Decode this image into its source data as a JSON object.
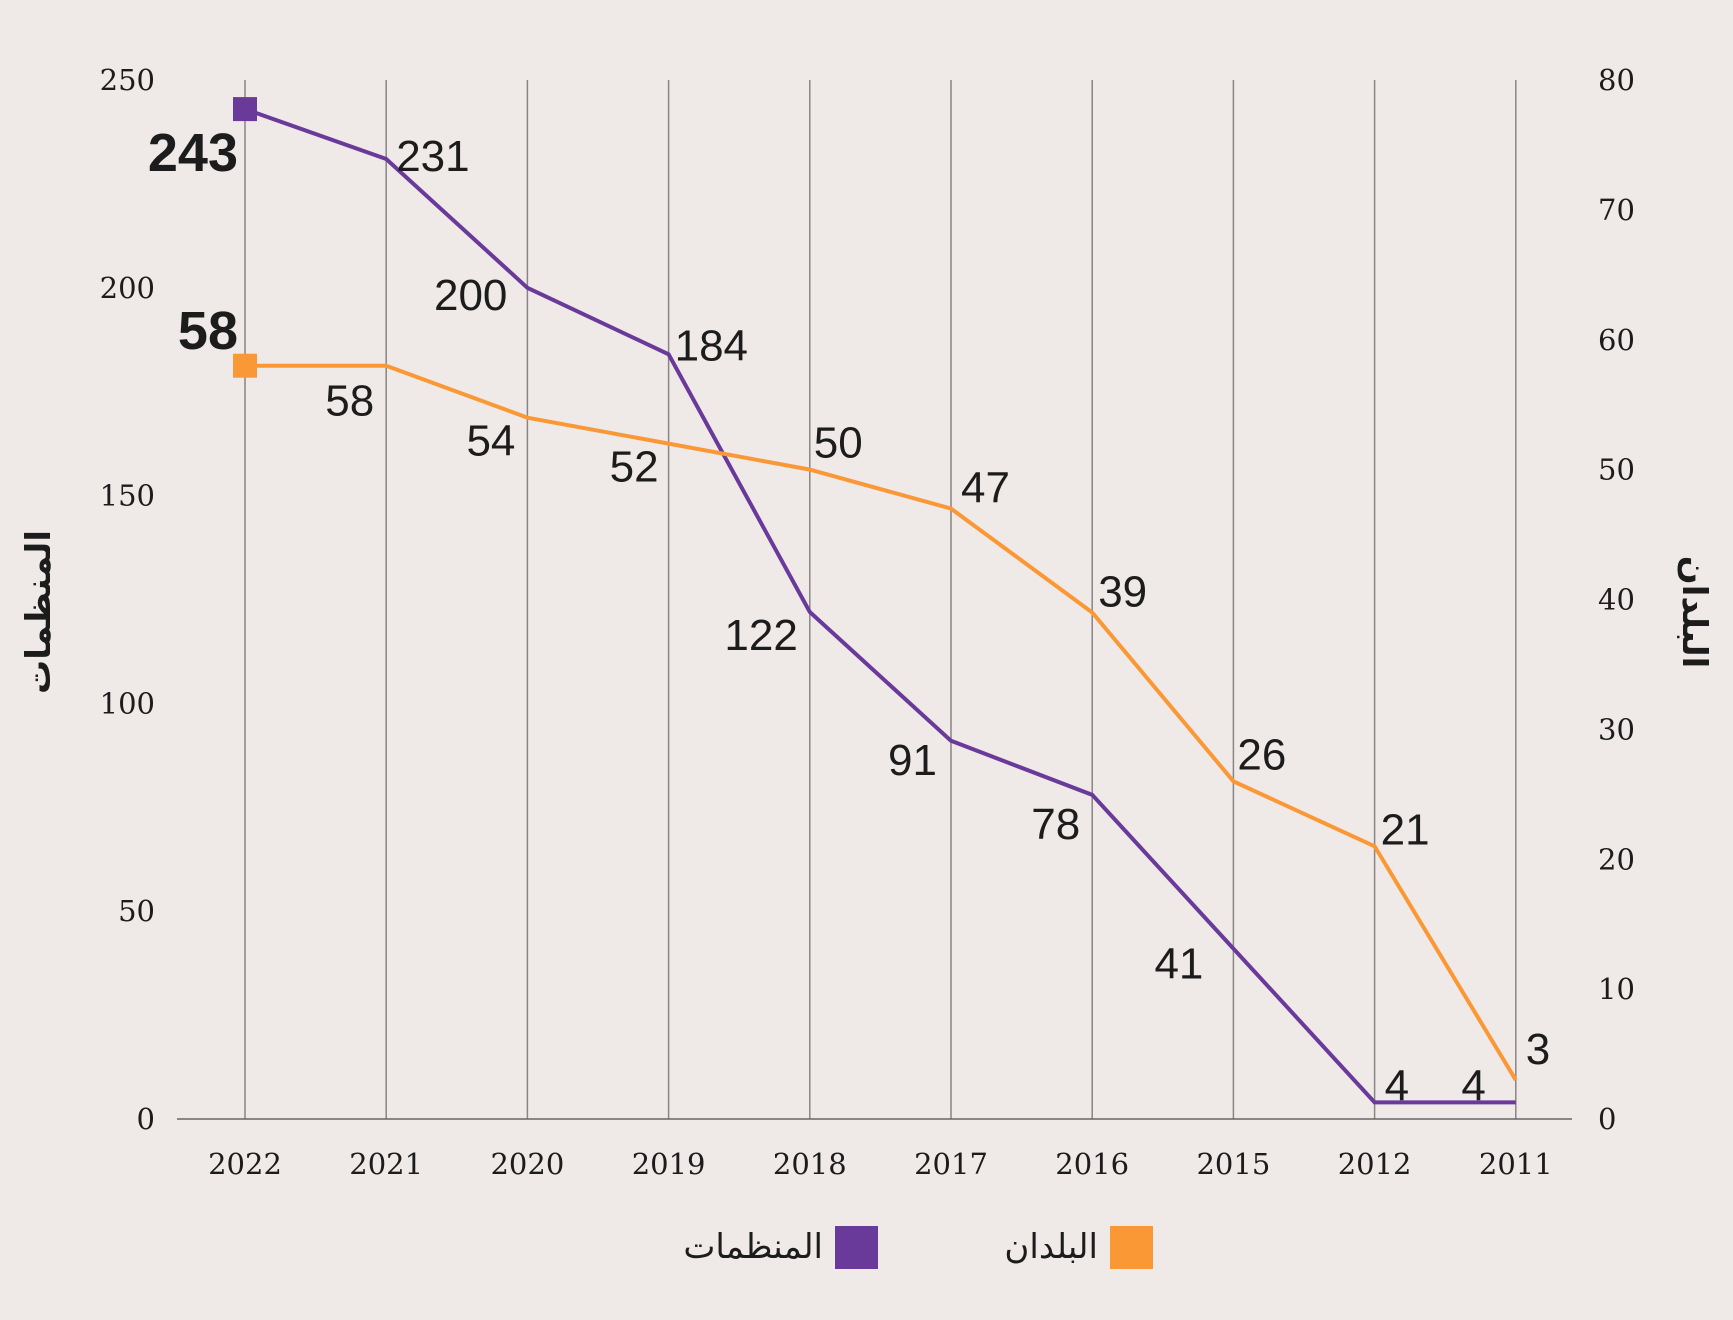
{
  "chart_data": {
    "type": "line",
    "categories": [
      "2022",
      "2021",
      "2020",
      "2019",
      "2018",
      "2017",
      "2016",
      "2015",
      "2012",
      "2011"
    ],
    "series": [
      {
        "name": "المنظمات",
        "axis": "left",
        "color": "#6a3a9a",
        "values": [
          243,
          231,
          200,
          184,
          122,
          91,
          78,
          41,
          4,
          4
        ]
      },
      {
        "name": "البلدان",
        "axis": "right",
        "color": "#fb9836",
        "values": [
          58,
          58,
          54,
          52,
          50,
          47,
          39,
          26,
          21,
          3
        ]
      }
    ],
    "left_axis": {
      "label": "المنظمات",
      "range": [
        0,
        250
      ],
      "ticks": [
        "0",
        "50",
        "100",
        "150",
        "200",
        "250"
      ]
    },
    "right_axis": {
      "label": "البلدان",
      "range": [
        0,
        80
      ],
      "ticks": [
        "0",
        "10",
        "20",
        "30",
        "40",
        "50",
        "60",
        "70",
        "80"
      ]
    },
    "highlights": {
      "organizations_2022": "243",
      "countries_2022": "58"
    },
    "legend": {
      "placement": "bottom",
      "items": [
        "المنظمات",
        "البلدان"
      ]
    },
    "grid": "vertical"
  }
}
